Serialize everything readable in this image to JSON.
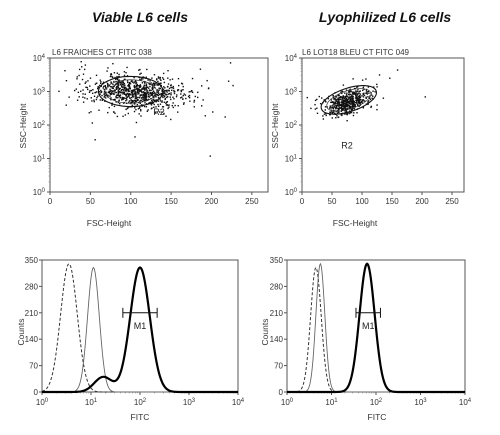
{
  "headings": [
    "Viable L6 cells",
    "Lyophilized L6 cells"
  ],
  "chart_data": [
    {
      "type": "scatter",
      "title": "L6 FRAICHES CT FITC 038",
      "xlabel": "FSC-Height",
      "ylabel": "SSC-Height",
      "xlim": [
        0,
        270
      ],
      "ylim_log": [
        0,
        4
      ],
      "x_ticks": [
        "0",
        "50",
        "100",
        "150",
        "200",
        "250"
      ],
      "y_ticks": [
        "10^0",
        "10^1",
        "10^2",
        "10^3",
        "10^4"
      ],
      "cluster": {
        "x_center": 105,
        "log_y_center": 3.0,
        "x_spread": 30,
        "log_y_spread": 0.25,
        "tilt": -0.2
      },
      "gate": {
        "label": "R2",
        "x_center": 100,
        "log_y_center": 3.0,
        "x_radius": 40,
        "log_y_radius": 0.45
      },
      "gate_label_pos": {
        "x": 135,
        "log_y": 2.3
      }
    },
    {
      "type": "scatter",
      "title": "L6 LOT18 BLEU CT FITC 049",
      "xlabel": "FSC-Height",
      "ylabel": "SSC-Height",
      "xlim": [
        0,
        270
      ],
      "ylim_log": [
        0,
        4
      ],
      "x_ticks": [
        "0",
        "50",
        "100",
        "150",
        "200",
        "250"
      ],
      "y_ticks": [
        "10^0",
        "10^1",
        "10^2",
        "10^3",
        "10^4"
      ],
      "cluster": {
        "x_center": 75,
        "log_y_center": 2.7,
        "x_spread": 18,
        "log_y_spread": 0.17,
        "tilt": 0.55
      },
      "gate": {
        "label": "R2",
        "x_center": 78,
        "log_y_center": 2.75,
        "x_radius": 48,
        "log_y_radius": 0.35,
        "rotation_deg": -18
      },
      "gate_label_pos": {
        "x": 75,
        "log_y": 1.3
      }
    },
    {
      "type": "line",
      "xlabel": "FITC",
      "ylabel": "Counts",
      "x_scale": "log",
      "xlim_log": [
        0,
        4
      ],
      "ylim": [
        0,
        350
      ],
      "x_ticks": [
        "10^0",
        "10^1",
        "10^2",
        "10^3",
        "10^4"
      ],
      "y_ticks": [
        "0",
        "70",
        "140",
        "210",
        "280",
        "350"
      ],
      "series": [
        {
          "style": "dashed",
          "components": [
            {
              "amp": 340,
              "log_center": 0.55,
              "log_width": 0.17
            }
          ]
        },
        {
          "style": "thin",
          "components": [
            {
              "amp": 330,
              "log_center": 1.05,
              "log_width": 0.12
            }
          ]
        },
        {
          "style": "bold",
          "components": [
            {
              "amp": 330,
              "log_center": 2.0,
              "log_width": 0.2
            },
            {
              "amp": 40,
              "log_center": 1.25,
              "log_width": 0.18
            }
          ]
        }
      ],
      "marker": {
        "label": "M1",
        "log_start": 1.65,
        "log_end": 2.35,
        "count": 210
      }
    },
    {
      "type": "line",
      "xlabel": "FITC",
      "ylabel": "Counts",
      "x_scale": "log",
      "xlim_log": [
        0,
        4
      ],
      "ylim": [
        0,
        350
      ],
      "x_ticks": [
        "10^0",
        "10^1",
        "10^2",
        "10^3",
        "10^4"
      ],
      "y_ticks": [
        "0",
        "70",
        "140",
        "210",
        "280",
        "350"
      ],
      "series": [
        {
          "style": "dashed",
          "components": [
            {
              "amp": 330,
              "log_center": 0.65,
              "log_width": 0.12
            }
          ]
        },
        {
          "style": "thin",
          "components": [
            {
              "amp": 340,
              "log_center": 0.75,
              "log_width": 0.1
            }
          ]
        },
        {
          "style": "bold",
          "components": [
            {
              "amp": 340,
              "log_center": 1.8,
              "log_width": 0.17
            }
          ]
        }
      ],
      "marker": {
        "label": "M1",
        "log_start": 1.55,
        "log_end": 2.1,
        "count": 210
      }
    }
  ]
}
